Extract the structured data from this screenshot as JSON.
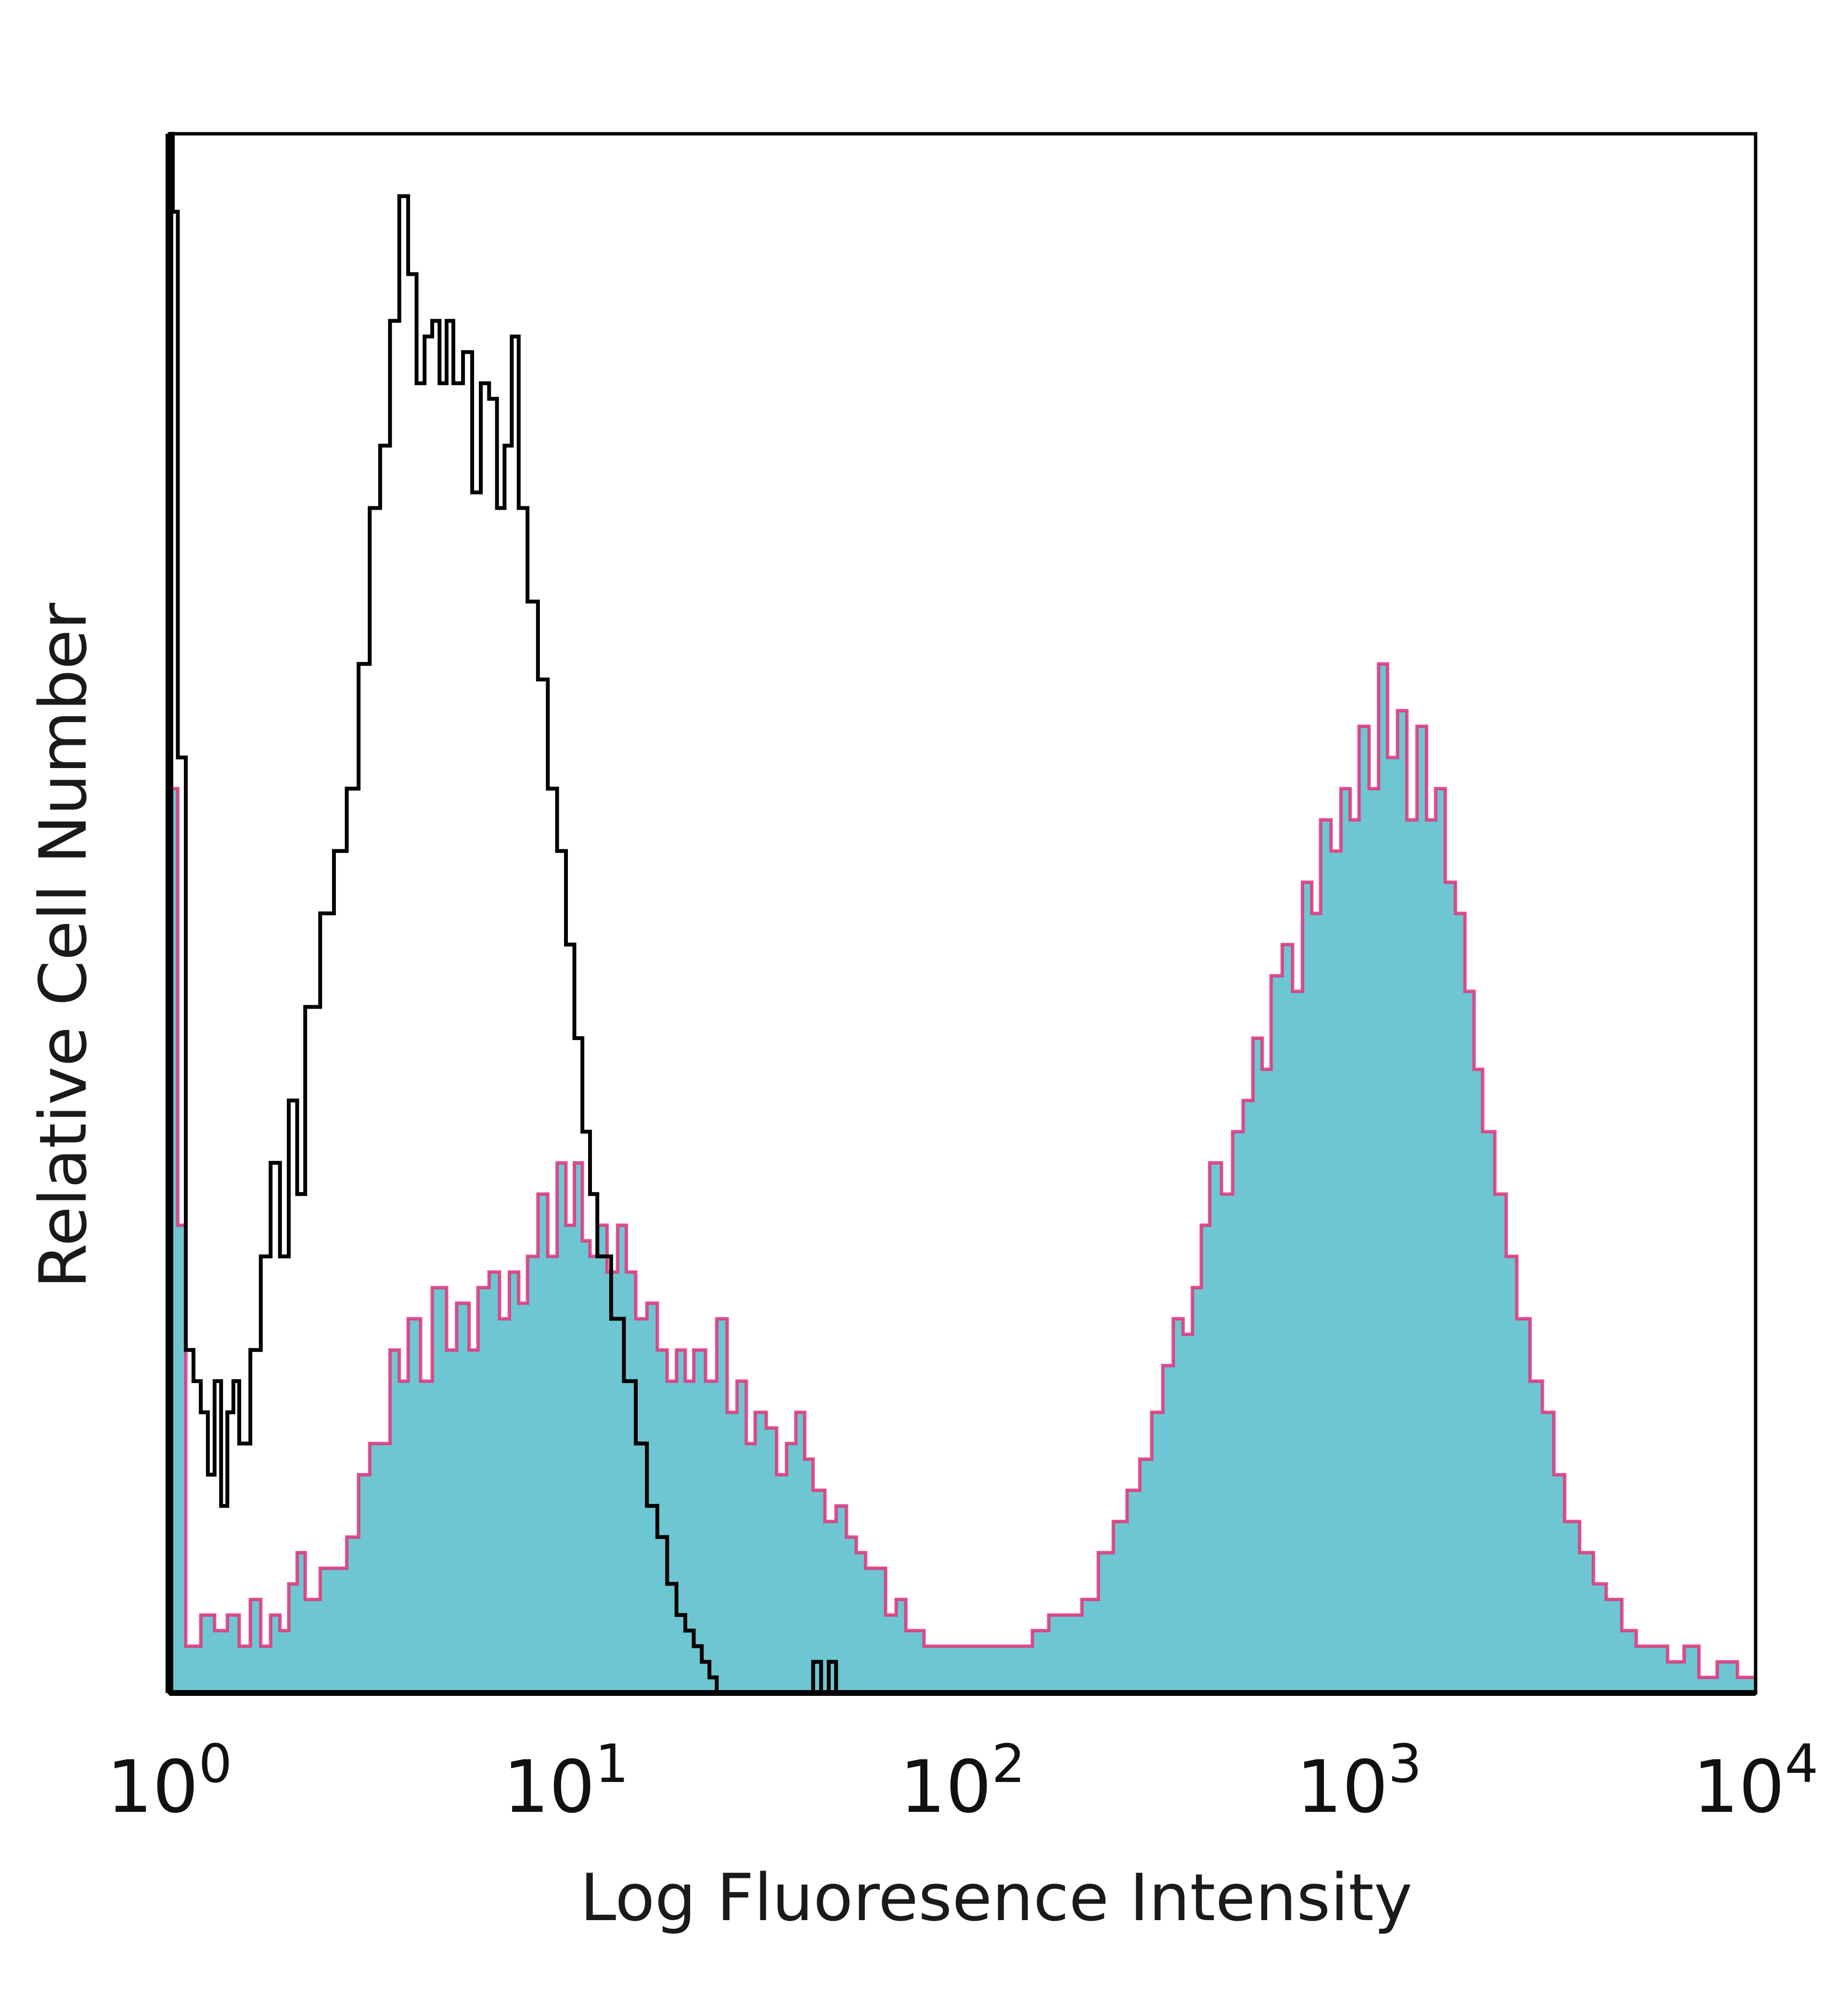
{
  "chart_data": {
    "type": "area",
    "title": "",
    "xlabel": "Log Fluoresence Intensity",
    "ylabel": "Relative Cell Number",
    "x_scale": "log",
    "xlim": [
      1,
      10000
    ],
    "ylim": [
      0,
      100
    ],
    "grid": false,
    "legend": "none",
    "x_ticks": [
      {
        "value": 1,
        "base": "10",
        "exp": "0"
      },
      {
        "value": 10,
        "base": "10",
        "exp": "1"
      },
      {
        "value": 100,
        "base": "10",
        "exp": "2"
      },
      {
        "value": 1000,
        "base": "10",
        "exp": "3"
      },
      {
        "value": 10000,
        "base": "10",
        "exp": "4"
      }
    ],
    "series": [
      {
        "style": "filled",
        "fill_color": "#6ec6d2",
        "edge_color": "#e0307a",
        "points": [
          [
            1.0,
            58
          ],
          [
            1.05,
            30
          ],
          [
            1.1,
            3
          ],
          [
            1.2,
            5
          ],
          [
            1.3,
            4
          ],
          [
            1.4,
            5
          ],
          [
            1.5,
            3
          ],
          [
            1.6,
            6
          ],
          [
            1.7,
            3
          ],
          [
            1.8,
            5
          ],
          [
            1.9,
            4
          ],
          [
            2.0,
            7
          ],
          [
            2.1,
            9
          ],
          [
            2.2,
            6
          ],
          [
            2.4,
            8
          ],
          [
            2.6,
            8
          ],
          [
            2.8,
            10
          ],
          [
            3.0,
            14
          ],
          [
            3.2,
            16
          ],
          [
            3.4,
            16
          ],
          [
            3.6,
            22
          ],
          [
            3.8,
            20
          ],
          [
            4.0,
            24
          ],
          [
            4.3,
            20
          ],
          [
            4.6,
            26
          ],
          [
            5.0,
            22
          ],
          [
            5.3,
            25
          ],
          [
            5.7,
            22
          ],
          [
            6.0,
            26
          ],
          [
            6.4,
            27
          ],
          [
            6.8,
            24
          ],
          [
            7.2,
            27
          ],
          [
            7.6,
            25
          ],
          [
            8.0,
            28
          ],
          [
            8.5,
            32
          ],
          [
            9.0,
            28
          ],
          [
            9.5,
            34
          ],
          [
            10.0,
            30
          ],
          [
            10.5,
            34
          ],
          [
            11.0,
            29
          ],
          [
            11.5,
            28
          ],
          [
            12.0,
            30
          ],
          [
            12.7,
            27
          ],
          [
            13.5,
            30
          ],
          [
            14.2,
            27
          ],
          [
            15.0,
            24
          ],
          [
            16.0,
            25
          ],
          [
            17.0,
            22
          ],
          [
            18.0,
            20
          ],
          [
            19.0,
            22
          ],
          [
            20.0,
            20
          ],
          [
            21.0,
            22
          ],
          [
            22.5,
            20
          ],
          [
            24.0,
            24
          ],
          [
            25.5,
            18
          ],
          [
            27.0,
            20
          ],
          [
            28.5,
            16
          ],
          [
            30.0,
            18
          ],
          [
            32.0,
            17
          ],
          [
            34.0,
            14
          ],
          [
            36.0,
            16
          ],
          [
            38.0,
            18
          ],
          [
            40.0,
            15
          ],
          [
            42.0,
            13
          ],
          [
            45.0,
            11
          ],
          [
            48.0,
            12
          ],
          [
            51.0,
            10
          ],
          [
            54.0,
            9
          ],
          [
            57.0,
            8
          ],
          [
            60.0,
            8
          ],
          [
            64.0,
            5
          ],
          [
            68.0,
            6
          ],
          [
            72.0,
            4
          ],
          [
            80.0,
            3
          ],
          [
            90.0,
            3
          ],
          [
            100.0,
            3
          ],
          [
            110.0,
            3
          ],
          [
            120.0,
            3
          ],
          [
            135.0,
            3
          ],
          [
            150.0,
            4
          ],
          [
            165.0,
            5
          ],
          [
            180.0,
            5
          ],
          [
            200.0,
            6
          ],
          [
            220.0,
            9
          ],
          [
            240.0,
            11
          ],
          [
            260.0,
            13
          ],
          [
            280.0,
            15
          ],
          [
            300.0,
            18
          ],
          [
            320.0,
            21
          ],
          [
            340.0,
            24
          ],
          [
            360.0,
            23
          ],
          [
            380.0,
            26
          ],
          [
            400.0,
            30
          ],
          [
            420.0,
            34
          ],
          [
            450.0,
            32
          ],
          [
            480.0,
            36
          ],
          [
            510.0,
            38
          ],
          [
            540.0,
            42
          ],
          [
            570.0,
            40
          ],
          [
            600.0,
            46
          ],
          [
            640.0,
            48
          ],
          [
            680.0,
            45
          ],
          [
            720.0,
            52
          ],
          [
            760.0,
            50
          ],
          [
            800.0,
            56
          ],
          [
            850.0,
            54
          ],
          [
            900.0,
            58
          ],
          [
            950.0,
            56
          ],
          [
            1000.0,
            62
          ],
          [
            1060.0,
            58
          ],
          [
            1120.0,
            66
          ],
          [
            1180.0,
            60
          ],
          [
            1250.0,
            63
          ],
          [
            1320.0,
            56
          ],
          [
            1400.0,
            62
          ],
          [
            1480.0,
            56
          ],
          [
            1560.0,
            58
          ],
          [
            1650.0,
            52
          ],
          [
            1750.0,
            50
          ],
          [
            1850.0,
            45
          ],
          [
            1950.0,
            40
          ],
          [
            2050.0,
            36
          ],
          [
            2200.0,
            32
          ],
          [
            2350.0,
            28
          ],
          [
            2500.0,
            24
          ],
          [
            2700.0,
            20
          ],
          [
            2900.0,
            18
          ],
          [
            3100.0,
            14
          ],
          [
            3300.0,
            11
          ],
          [
            3600.0,
            9
          ],
          [
            3900.0,
            7
          ],
          [
            4200.0,
            6
          ],
          [
            4600.0,
            4
          ],
          [
            5000.0,
            3
          ],
          [
            5500.0,
            3
          ],
          [
            6000.0,
            2
          ],
          [
            6600.0,
            3
          ],
          [
            7200.0,
            1
          ],
          [
            8000.0,
            2
          ],
          [
            9000.0,
            1
          ],
          [
            10000.0,
            3
          ]
        ]
      },
      {
        "style": "line",
        "line_color": "#000000",
        "points": [
          [
            1.0,
            100
          ],
          [
            1.02,
            95
          ],
          [
            1.05,
            60
          ],
          [
            1.1,
            22
          ],
          [
            1.15,
            20
          ],
          [
            1.2,
            18
          ],
          [
            1.25,
            14
          ],
          [
            1.3,
            20
          ],
          [
            1.35,
            12
          ],
          [
            1.4,
            18
          ],
          [
            1.45,
            20
          ],
          [
            1.5,
            16
          ],
          [
            1.6,
            22
          ],
          [
            1.7,
            28
          ],
          [
            1.8,
            34
          ],
          [
            1.9,
            28
          ],
          [
            2.0,
            38
          ],
          [
            2.1,
            32
          ],
          [
            2.2,
            44
          ],
          [
            2.4,
            50
          ],
          [
            2.6,
            54
          ],
          [
            2.8,
            58
          ],
          [
            3.0,
            66
          ],
          [
            3.2,
            76
          ],
          [
            3.4,
            80
          ],
          [
            3.6,
            88
          ],
          [
            3.8,
            96
          ],
          [
            4.0,
            91
          ],
          [
            4.2,
            84
          ],
          [
            4.4,
            87
          ],
          [
            4.6,
            88
          ],
          [
            4.8,
            84
          ],
          [
            5.0,
            88
          ],
          [
            5.2,
            84
          ],
          [
            5.5,
            86
          ],
          [
            5.8,
            77
          ],
          [
            6.1,
            84
          ],
          [
            6.4,
            83
          ],
          [
            6.7,
            76
          ],
          [
            7.0,
            80
          ],
          [
            7.3,
            87
          ],
          [
            7.6,
            76
          ],
          [
            8.0,
            70
          ],
          [
            8.5,
            65
          ],
          [
            9.0,
            58
          ],
          [
            9.5,
            54
          ],
          [
            10.0,
            48
          ],
          [
            10.5,
            42
          ],
          [
            11.0,
            36
          ],
          [
            11.5,
            32
          ],
          [
            12.0,
            28
          ],
          [
            13.0,
            24
          ],
          [
            14.0,
            20
          ],
          [
            15.0,
            16
          ],
          [
            16.0,
            12
          ],
          [
            17.0,
            10
          ],
          [
            18.0,
            7
          ],
          [
            19.0,
            5
          ],
          [
            20.0,
            4
          ],
          [
            21.0,
            3
          ],
          [
            22.0,
            2
          ],
          [
            23.0,
            1
          ],
          [
            24.0,
            0
          ],
          [
            26.0,
            0
          ],
          [
            30.0,
            0
          ],
          [
            35.0,
            0
          ],
          [
            40.0,
            0
          ],
          [
            42.0,
            2
          ],
          [
            44.0,
            0
          ],
          [
            46.0,
            2
          ],
          [
            48.0,
            0
          ],
          [
            55.0,
            0
          ],
          [
            70.0,
            0
          ],
          [
            100.0,
            0
          ],
          [
            200.0,
            0
          ],
          [
            500.0,
            0
          ],
          [
            1000.0,
            0
          ],
          [
            5000.0,
            0
          ],
          [
            10000.0,
            0
          ]
        ]
      }
    ],
    "colors": {
      "frame": "#000000",
      "fill": "#6ec6d2",
      "fill_edge": "#e0307a",
      "outline": "#000000"
    }
  }
}
